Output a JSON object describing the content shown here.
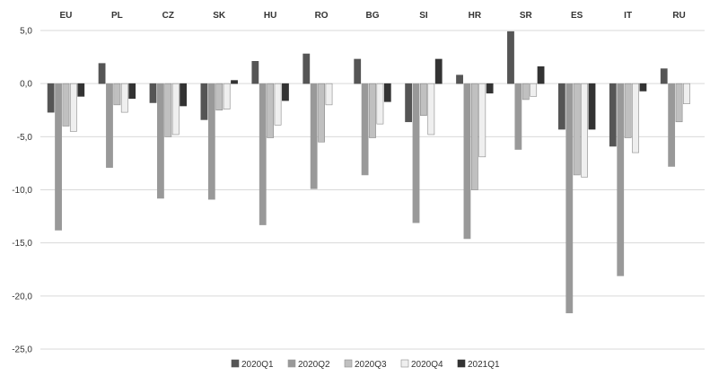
{
  "chart_data": {
    "type": "bar",
    "categories": [
      "EU",
      "PL",
      "CZ",
      "SK",
      "HU",
      "RO",
      "BG",
      "SI",
      "HR",
      "SR",
      "ES",
      "IT",
      "RU"
    ],
    "series": [
      {
        "name": "2020Q1",
        "color": "#555555",
        "stroke": "#555555",
        "values": [
          -2.7,
          1.9,
          -1.8,
          -3.4,
          2.1,
          2.8,
          2.3,
          -3.6,
          0.8,
          4.9,
          -4.3,
          -5.9,
          1.4
        ]
      },
      {
        "name": "2020Q2",
        "color": "#999999",
        "stroke": "#999999",
        "values": [
          -13.8,
          -7.9,
          -10.8,
          -10.9,
          -13.3,
          -9.9,
          -8.6,
          -13.1,
          -14.6,
          -6.2,
          -21.6,
          -18.1,
          -7.8
        ]
      },
      {
        "name": "2020Q3",
        "color": "#c0c0c0",
        "stroke": "#8a8a8a",
        "values": [
          -4.0,
          -2.0,
          -5.0,
          -2.5,
          -5.1,
          -5.5,
          -5.1,
          -3.0,
          -10.0,
          -1.5,
          -8.6,
          -5.1,
          -3.6
        ]
      },
      {
        "name": "2020Q4",
        "color": "#efefef",
        "stroke": "#8a8a8a",
        "values": [
          -4.5,
          -2.7,
          -4.8,
          -2.4,
          -3.9,
          -2.0,
          -3.8,
          -4.8,
          -6.9,
          -1.2,
          -8.8,
          -6.5,
          -1.9
        ]
      },
      {
        "name": "2021Q1",
        "color": "#333333",
        "stroke": "#333333",
        "values": [
          -1.2,
          -1.4,
          -2.1,
          0.3,
          -1.6,
          null,
          -1.7,
          2.3,
          -0.9,
          1.6,
          -4.3,
          -0.7,
          null
        ]
      }
    ],
    "y_ticks": [
      "5,0",
      "0,0",
      "-5,0",
      "-10,0",
      "-15,0",
      "-20,0",
      "-25,0"
    ],
    "ylim": [
      -25,
      5
    ],
    "grid": "horizontal",
    "legend_position": "bottom"
  }
}
